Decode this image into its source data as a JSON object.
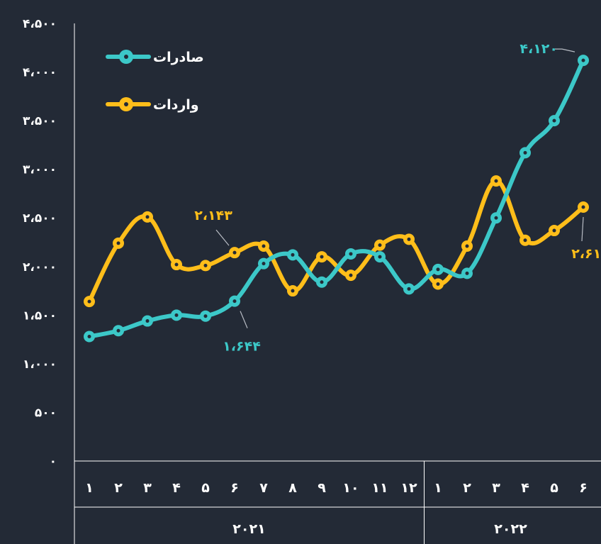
{
  "chart_data": {
    "type": "line",
    "y_ticks": [
      "۰",
      "۵۰۰",
      "۱،۰۰۰",
      "۱،۵۰۰",
      "۲،۰۰۰",
      "۲،۵۰۰",
      "۳،۰۰۰",
      "۳،۵۰۰",
      "۴،۰۰۰",
      "۴،۵۰۰"
    ],
    "ylim": [
      0,
      4500
    ],
    "x_labels": [
      "۱",
      "۲",
      "۳",
      "۴",
      "۵",
      "۶",
      "۷",
      "۸",
      "۹",
      "۱۰",
      "۱۱",
      "۱۲",
      "۱",
      "۲",
      "۳",
      "۴",
      "۵",
      "۶"
    ],
    "years": [
      {
        "label": "۲۰۲۱",
        "months": 12
      },
      {
        "label": "۲۰۲۲",
        "months": 6
      }
    ],
    "series": [
      {
        "name": "صادرات",
        "color": "#3cc8c8",
        "values": [
          1280,
          1340,
          1440,
          1500,
          1490,
          1644,
          2030,
          2120,
          1840,
          2130,
          2100,
          1770,
          1970,
          1930,
          2500,
          3170,
          3500,
          4120
        ]
      },
      {
        "name": "واردات",
        "color": "#ffbe1a",
        "values": [
          1640,
          2240,
          2510,
          2020,
          2010,
          2143,
          2210,
          1750,
          2100,
          1910,
          2220,
          2280,
          1820,
          2210,
          2880,
          2270,
          2370,
          2611
        ]
      }
    ],
    "annotations": [
      {
        "series": 0,
        "index": 5,
        "text": "۱،۶۴۴",
        "color": "#3cc8c8"
      },
      {
        "series": 0,
        "index": 17,
        "text": "۴،۱۲۰",
        "color": "#3cc8c8"
      },
      {
        "series": 1,
        "index": 5,
        "text": "۲،۱۴۳",
        "color": "#ffbe1a"
      },
      {
        "series": 1,
        "index": 17,
        "text": "۲،۶۱۱",
        "color": "#ffbe1a"
      }
    ],
    "legend_position": "top-left",
    "grid": false
  }
}
